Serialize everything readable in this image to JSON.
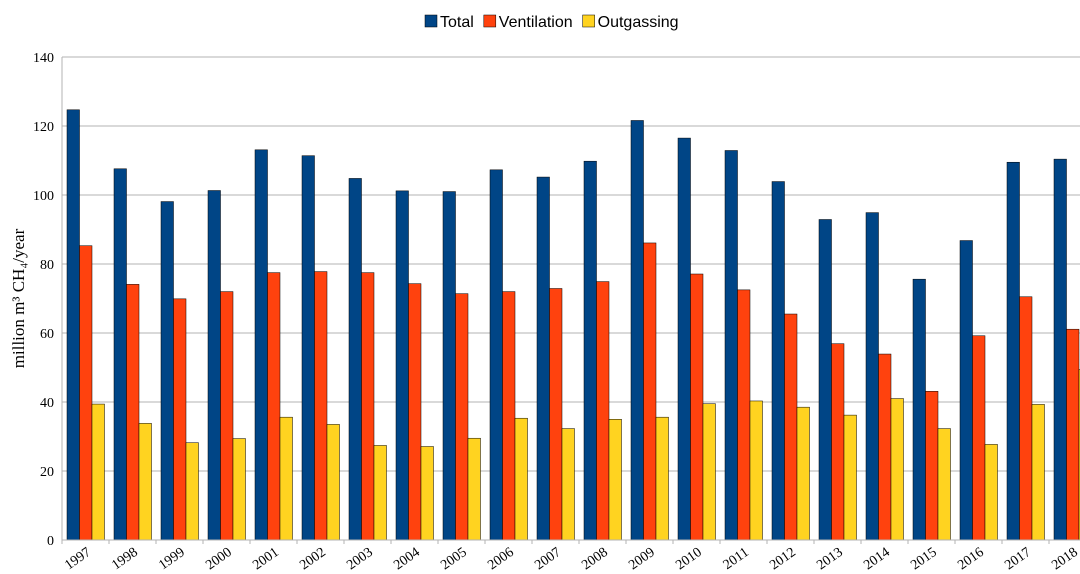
{
  "chart_data": {
    "type": "bar",
    "y_label": "million m³ CH₄/year",
    "categories": [
      "1997",
      "1998",
      "1999",
      "2000",
      "2001",
      "2002",
      "2003",
      "2004",
      "2005",
      "2006",
      "2007",
      "2008",
      "2009",
      "2010",
      "2011",
      "2012",
      "2013",
      "2014",
      "2015",
      "2016",
      "2017",
      "2018"
    ],
    "series": [
      {
        "name": "Total",
        "color": "#004586",
        "values": [
          124.7,
          107.6,
          98.1,
          101.3,
          113.1,
          111.4,
          104.8,
          101.2,
          101.0,
          107.3,
          105.2,
          109.8,
          121.6,
          116.5,
          112.9,
          103.9,
          92.9,
          94.9,
          75.6,
          86.8,
          109.5,
          110.4
        ]
      },
      {
        "name": "Ventilation",
        "color": "#ff420e",
        "values": [
          85.3,
          74.1,
          69.9,
          72.0,
          77.5,
          77.8,
          77.5,
          74.3,
          71.4,
          72.0,
          72.9,
          74.9,
          86.1,
          77.1,
          72.5,
          65.5,
          56.9,
          53.9,
          43.1,
          59.2,
          70.5,
          61.1
        ]
      },
      {
        "name": "Outgassing",
        "color": "#ffd320",
        "values": [
          39.4,
          33.8,
          28.2,
          29.4,
          35.6,
          33.5,
          27.4,
          27.1,
          29.5,
          35.3,
          32.3,
          35.0,
          35.6,
          39.5,
          40.3,
          38.5,
          36.2,
          41.0,
          32.3,
          27.7,
          39.3,
          49.4
        ]
      }
    ],
    "ylim": [
      0,
      140
    ],
    "yticks": [
      0,
      20,
      40,
      60,
      80,
      100,
      120,
      140
    ],
    "grid": true,
    "legend": "top"
  }
}
